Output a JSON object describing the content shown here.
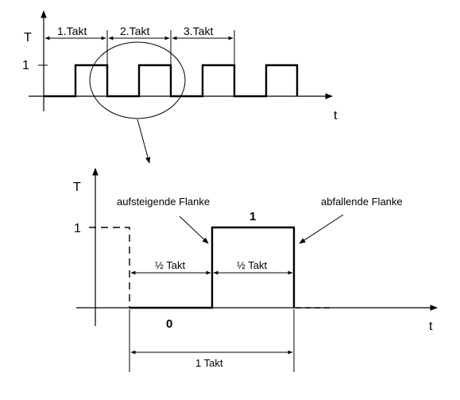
{
  "top": {
    "y_axis_label": "T",
    "x_axis_label": "t",
    "level_label": "1",
    "takt_labels": [
      "1.Takt",
      "2.Takt",
      "3.Takt"
    ]
  },
  "bottom": {
    "y_axis_label": "T",
    "x_axis_label": "t",
    "level_label": "1",
    "rising_edge_label": "aufsteigende Flanke",
    "falling_edge_label": "abfallende Flanke",
    "high_value_label": "1",
    "low_value_label": "0",
    "half_takt_label": "½ Takt",
    "full_takt_label": "1 Takt"
  }
}
